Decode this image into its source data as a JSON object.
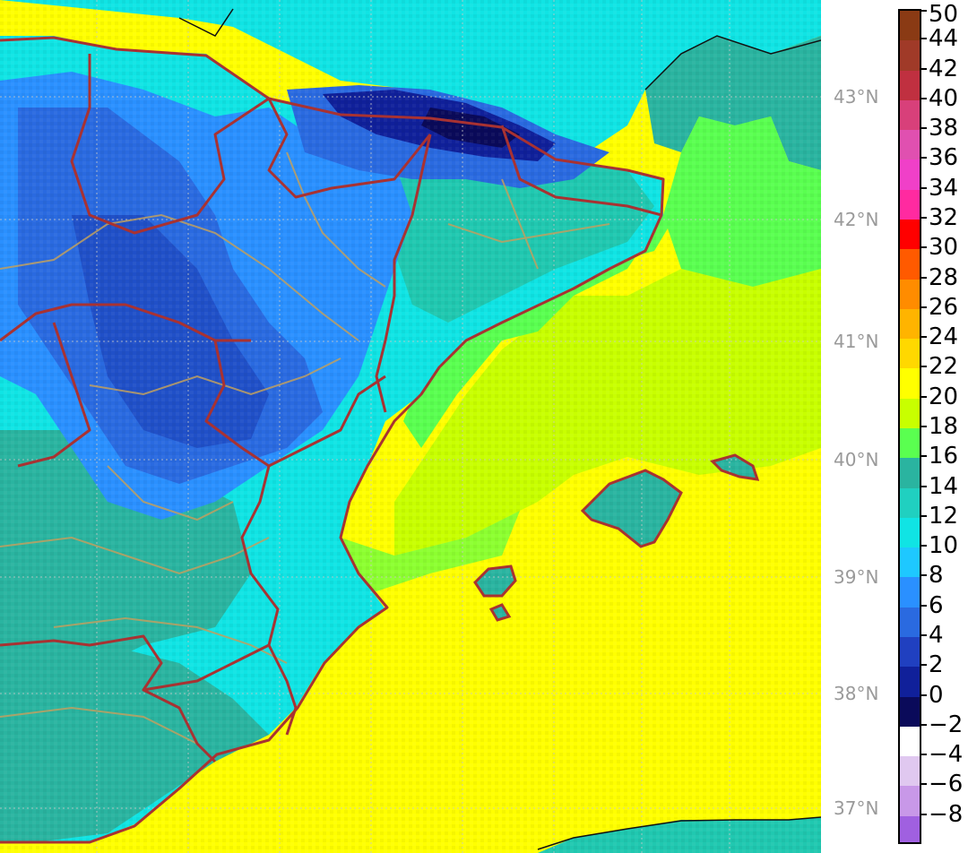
{
  "map": {
    "type": "temperature-map",
    "region_features": [
      "iberian-peninsula",
      "balearic-islands",
      "pyrenees",
      "mediterranean-sea",
      "north-africa-coast",
      "southern-france-coast"
    ],
    "lat_labels": [
      "43°N",
      "42°N",
      "41°N",
      "40°N",
      "39°N",
      "38°N",
      "37°N"
    ],
    "border_color": "#a83232",
    "province_color": "#c0a060",
    "grid_color": "#cccccc"
  },
  "colorbar": {
    "labels": [
      "50",
      "44",
      "42",
      "40",
      "38",
      "36",
      "34",
      "32",
      "30",
      "28",
      "26",
      "24",
      "22",
      "20",
      "18",
      "16",
      "14",
      "12",
      "10",
      "8",
      "6",
      "4",
      "2",
      "0",
      "−2",
      "−4",
      "−6",
      "−8"
    ],
    "colors": [
      "#8a3a14",
      "#a03a28",
      "#c03040",
      "#d8407a",
      "#e050b0",
      "#f040c8",
      "#ff2aa0",
      "#ff0000",
      "#ff5a00",
      "#ff8c00",
      "#ffb400",
      "#ffd800",
      "#ffff00",
      "#c8ff00",
      "#5aff50",
      "#2ab4a0",
      "#20d0c0",
      "#10e4e4",
      "#1ec8ff",
      "#2a90ff",
      "#2a6ae0",
      "#2040c0",
      "#10209a",
      "#0a0a5a",
      "#ffffff",
      "#e0c8f0",
      "#c898e8",
      "#a060e0"
    ]
  }
}
